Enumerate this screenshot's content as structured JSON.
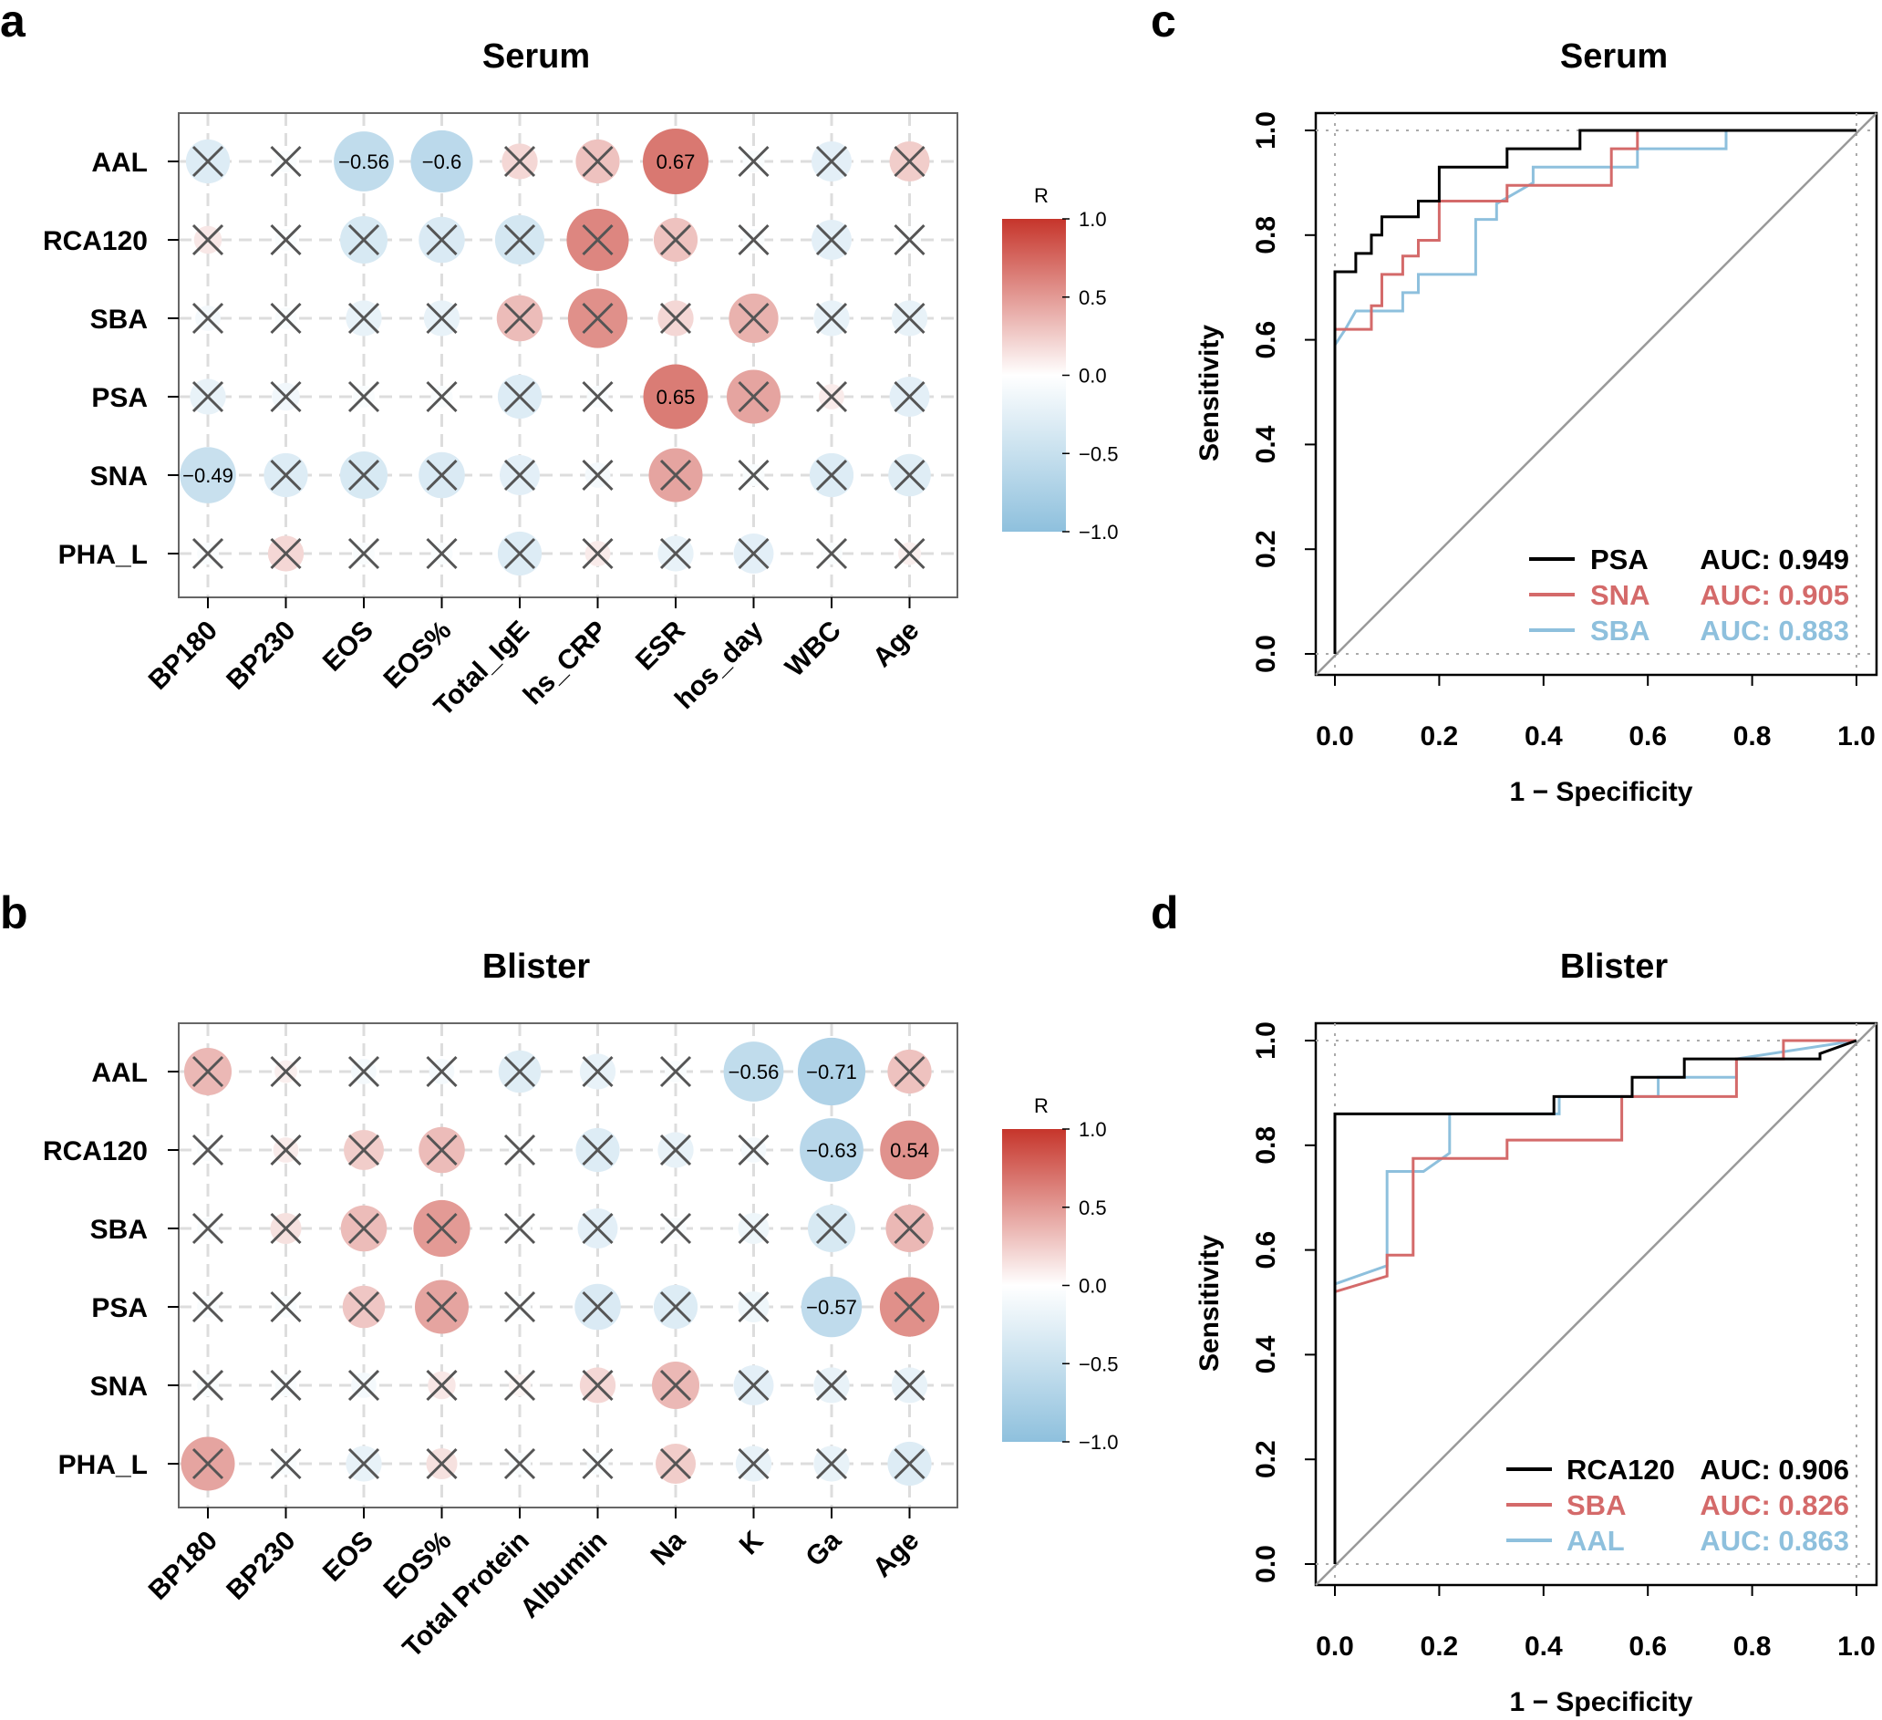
{
  "panels": {
    "a": {
      "label": "a"
    },
    "b": {
      "label": "b"
    },
    "c": {
      "label": "c"
    },
    "d": {
      "label": "d"
    }
  },
  "colors": {
    "neg": "#8ec0dd",
    "mid": "#ffffff",
    "pos": "#c6352b",
    "cross": "#555555",
    "grid": "#dddddd"
  },
  "chart_data": [
    {
      "id": "a",
      "type": "heatmap",
      "title": "Serum",
      "rows": [
        "AAL",
        "RCA120",
        "SBA",
        "PSA",
        "SNA",
        "PHA_L"
      ],
      "cols": [
        "BP180",
        "BP230",
        "EOS",
        "EOS%",
        "Total_IgE",
        "hs_CRP",
        "ESR",
        "hos_day",
        "WBC",
        "Age"
      ],
      "values": [
        [
          -0.3,
          -0.05,
          -0.56,
          -0.6,
          0.2,
          0.3,
          0.67,
          -0.05,
          -0.25,
          0.25
        ],
        [
          0.12,
          -0.05,
          -0.35,
          -0.33,
          -0.38,
          0.6,
          0.3,
          -0.05,
          -0.25,
          -0.05
        ],
        [
          -0.1,
          -0.05,
          -0.2,
          -0.2,
          0.33,
          0.55,
          0.2,
          0.38,
          -0.2,
          -0.2
        ],
        [
          -0.2,
          -0.12,
          -0.05,
          -0.05,
          -0.3,
          -0.05,
          0.65,
          0.45,
          0.1,
          -0.25
        ],
        [
          -0.49,
          -0.3,
          -0.35,
          -0.33,
          -0.25,
          -0.1,
          0.45,
          -0.05,
          -0.3,
          -0.28
        ],
        [
          -0.05,
          0.2,
          -0.05,
          -0.05,
          -0.3,
          0.1,
          -0.2,
          -0.25,
          -0.05,
          0.08
        ]
      ],
      "significant": [
        [
          false,
          false,
          true,
          true,
          false,
          false,
          true,
          false,
          false,
          false
        ],
        [
          false,
          false,
          false,
          false,
          false,
          false,
          false,
          false,
          false,
          false
        ],
        [
          false,
          false,
          false,
          false,
          false,
          false,
          false,
          false,
          false,
          false
        ],
        [
          false,
          false,
          false,
          false,
          false,
          false,
          true,
          false,
          false,
          false
        ],
        [
          true,
          false,
          false,
          false,
          false,
          false,
          false,
          false,
          false,
          false
        ],
        [
          false,
          false,
          false,
          false,
          false,
          false,
          false,
          false,
          false,
          false
        ]
      ],
      "labels": [
        [
          "",
          "",
          "−0.56",
          "−0.6",
          "",
          "",
          "0.67",
          "",
          "",
          ""
        ],
        [
          "",
          "",
          "",
          "",
          "",
          "",
          "",
          "",
          "",
          ""
        ],
        [
          "",
          "",
          "",
          "",
          "",
          "",
          "",
          "",
          "",
          ""
        ],
        [
          "",
          "",
          "",
          "",
          "",
          "",
          "0.65",
          "",
          "",
          ""
        ],
        [
          "−0.49",
          "",
          "",
          "",
          "",
          "",
          "",
          "",
          "",
          ""
        ],
        [
          "",
          "",
          "",
          "",
          "",
          "",
          "",
          "",
          "",
          ""
        ]
      ],
      "colorbar": {
        "title": "R",
        "ticks": [
          "1.0",
          "0.5",
          "0.0",
          "−0.5",
          "−1.0"
        ]
      }
    },
    {
      "id": "b",
      "type": "heatmap",
      "title": "Blister",
      "rows": [
        "AAL",
        "RCA120",
        "SBA",
        "PSA",
        "SNA",
        "PHA_L"
      ],
      "cols": [
        "BP180",
        "BP230",
        "EOS",
        "EOS%",
        "Total Protein",
        "Albumin",
        "Na",
        "K",
        "Ga",
        "Age"
      ],
      "values": [
        [
          0.35,
          0.08,
          -0.1,
          -0.1,
          -0.28,
          -0.2,
          -0.05,
          -0.56,
          -0.71,
          0.3
        ],
        [
          -0.05,
          0.1,
          0.25,
          0.33,
          -0.05,
          -0.3,
          -0.2,
          -0.1,
          -0.63,
          0.54
        ],
        [
          -0.05,
          0.15,
          0.33,
          0.5,
          -0.05,
          -0.25,
          -0.05,
          -0.15,
          -0.35,
          0.35
        ],
        [
          -0.05,
          -0.05,
          0.28,
          0.45,
          -0.05,
          -0.33,
          -0.3,
          -0.15,
          -0.57,
          0.55
        ],
        [
          -0.05,
          -0.05,
          -0.1,
          0.12,
          0.05,
          0.2,
          0.35,
          -0.25,
          -0.2,
          -0.2
        ],
        [
          0.45,
          -0.05,
          -0.2,
          0.15,
          -0.05,
          -0.05,
          0.25,
          -0.2,
          -0.2,
          -0.3
        ]
      ],
      "significant": [
        [
          false,
          false,
          false,
          false,
          false,
          false,
          false,
          true,
          true,
          false
        ],
        [
          false,
          false,
          false,
          false,
          false,
          false,
          false,
          false,
          true,
          true
        ],
        [
          false,
          false,
          false,
          false,
          false,
          false,
          false,
          false,
          false,
          false
        ],
        [
          false,
          false,
          false,
          false,
          false,
          false,
          false,
          false,
          true,
          false
        ],
        [
          false,
          false,
          false,
          false,
          false,
          false,
          false,
          false,
          false,
          false
        ],
        [
          false,
          false,
          false,
          false,
          false,
          false,
          false,
          false,
          false,
          false
        ]
      ],
      "labels": [
        [
          "",
          "",
          "",
          "",
          "",
          "",
          "",
          "−0.56",
          "−0.71",
          ""
        ],
        [
          "",
          "",
          "",
          "",
          "",
          "",
          "",
          "",
          "−0.63",
          "0.54"
        ],
        [
          "",
          "",
          "",
          "",
          "",
          "",
          "",
          "",
          "",
          ""
        ],
        [
          "",
          "",
          "",
          "",
          "",
          "",
          "",
          "",
          "−0.57",
          ""
        ],
        [
          "",
          "",
          "",
          "",
          "",
          "",
          "",
          "",
          "",
          ""
        ],
        [
          "",
          "",
          "",
          "",
          "",
          "",
          "",
          "",
          "",
          ""
        ]
      ],
      "colorbar": {
        "title": "R",
        "ticks": [
          "1.0",
          "0.5",
          "0.0",
          "−0.5",
          "−1.0"
        ]
      }
    },
    {
      "id": "c",
      "type": "line",
      "title": "Serum",
      "xlabel": "1 − Specificity",
      "ylabel": "Sensitivity",
      "xlim": [
        0,
        1
      ],
      "ylim": [
        0,
        1
      ],
      "xticks": [
        "0.0",
        "0.2",
        "0.4",
        "0.6",
        "0.8",
        "1.0"
      ],
      "yticks": [
        "0.0",
        "0.2",
        "0.4",
        "0.6",
        "0.8",
        "1.0"
      ],
      "series": [
        {
          "name": "PSA",
          "auc_label": "AUC: 0.949",
          "color": "#000000",
          "points": [
            [
              0,
              0
            ],
            [
              0,
              0.73
            ],
            [
              0.04,
              0.73
            ],
            [
              0.04,
              0.765
            ],
            [
              0.07,
              0.765
            ],
            [
              0.07,
              0.8
            ],
            [
              0.09,
              0.8
            ],
            [
              0.09,
              0.835
            ],
            [
              0.16,
              0.835
            ],
            [
              0.16,
              0.865
            ],
            [
              0.2,
              0.865
            ],
            [
              0.2,
              0.93
            ],
            [
              0.33,
              0.93
            ],
            [
              0.33,
              0.965
            ],
            [
              0.47,
              0.965
            ],
            [
              0.47,
              1
            ],
            [
              1,
              1
            ]
          ]
        },
        {
          "name": "SNA",
          "auc_label": "AUC: 0.905",
          "color": "#d46a6a",
          "points": [
            [
              0,
              0
            ],
            [
              0,
              0.62
            ],
            [
              0.07,
              0.62
            ],
            [
              0.07,
              0.665
            ],
            [
              0.09,
              0.665
            ],
            [
              0.09,
              0.725
            ],
            [
              0.13,
              0.725
            ],
            [
              0.13,
              0.76
            ],
            [
              0.16,
              0.76
            ],
            [
              0.16,
              0.79
            ],
            [
              0.2,
              0.79
            ],
            [
              0.2,
              0.865
            ],
            [
              0.33,
              0.865
            ],
            [
              0.33,
              0.895
            ],
            [
              0.53,
              0.895
            ],
            [
              0.53,
              0.965
            ],
            [
              0.58,
              0.965
            ],
            [
              0.58,
              1
            ],
            [
              1,
              1
            ]
          ]
        },
        {
          "name": "SBA",
          "auc_label": "AUC: 0.883",
          "color": "#8ec0dd",
          "points": [
            [
              0,
              0
            ],
            [
              0,
              0.59
            ],
            [
              0.02,
              0.62
            ],
            [
              0.04,
              0.655
            ],
            [
              0.13,
              0.655
            ],
            [
              0.13,
              0.69
            ],
            [
              0.16,
              0.69
            ],
            [
              0.16,
              0.725
            ],
            [
              0.27,
              0.725
            ],
            [
              0.27,
              0.83
            ],
            [
              0.31,
              0.83
            ],
            [
              0.31,
              0.86
            ],
            [
              0.38,
              0.9
            ],
            [
              0.38,
              0.93
            ],
            [
              0.58,
              0.93
            ],
            [
              0.58,
              0.965
            ],
            [
              0.75,
              0.965
            ],
            [
              0.75,
              1
            ],
            [
              1,
              1
            ]
          ]
        }
      ]
    },
    {
      "id": "d",
      "type": "line",
      "title": "Blister",
      "xlabel": "1 − Specificity",
      "ylabel": "Sensitivity",
      "xlim": [
        0,
        1
      ],
      "ylim": [
        0,
        1
      ],
      "xticks": [
        "0.0",
        "0.2",
        "0.4",
        "0.6",
        "0.8",
        "1.0"
      ],
      "yticks": [
        "0.0",
        "0.2",
        "0.4",
        "0.6",
        "0.8",
        "1.0"
      ],
      "series": [
        {
          "name": "RCA120",
          "auc_label": "AUC: 0.906",
          "color": "#000000",
          "points": [
            [
              0,
              0
            ],
            [
              0,
              0.86
            ],
            [
              0.42,
              0.86
            ],
            [
              0.42,
              0.893
            ],
            [
              0.57,
              0.893
            ],
            [
              0.57,
              0.93
            ],
            [
              0.67,
              0.93
            ],
            [
              0.67,
              0.965
            ],
            [
              0.93,
              0.965
            ],
            [
              0.93,
              0.975
            ],
            [
              1,
              1
            ]
          ]
        },
        {
          "name": "SBA",
          "auc_label": "AUC: 0.826",
          "color": "#d46a6a",
          "points": [
            [
              0,
              0
            ],
            [
              0,
              0.52
            ],
            [
              0.1,
              0.55
            ],
            [
              0.1,
              0.59
            ],
            [
              0.15,
              0.59
            ],
            [
              0.15,
              0.775
            ],
            [
              0.33,
              0.775
            ],
            [
              0.33,
              0.81
            ],
            [
              0.55,
              0.81
            ],
            [
              0.55,
              0.893
            ],
            [
              0.77,
              0.893
            ],
            [
              0.77,
              0.965
            ],
            [
              0.86,
              0.965
            ],
            [
              0.86,
              1
            ],
            [
              1,
              1
            ]
          ]
        },
        {
          "name": "AAL",
          "auc_label": "AUC: 0.863",
          "color": "#8ec0dd",
          "points": [
            [
              0,
              0
            ],
            [
              0,
              0.535
            ],
            [
              0.1,
              0.57
            ],
            [
              0.1,
              0.75
            ],
            [
              0.17,
              0.75
            ],
            [
              0.22,
              0.785
            ],
            [
              0.22,
              0.86
            ],
            [
              0.43,
              0.86
            ],
            [
              0.43,
              0.893
            ],
            [
              0.57,
              0.893
            ],
            [
              0.62,
              0.893
            ],
            [
              0.62,
              0.93
            ],
            [
              0.77,
              0.93
            ],
            [
              0.77,
              0.965
            ],
            [
              1,
              1
            ]
          ]
        }
      ]
    }
  ]
}
